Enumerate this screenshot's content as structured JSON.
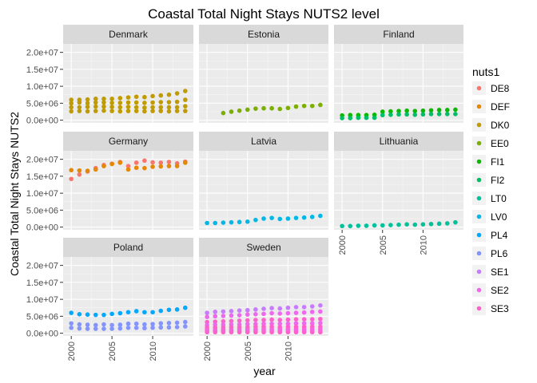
{
  "chart_data": {
    "type": "scatter",
    "title": "Coastal Total Night Stays NUTS2 level",
    "xlabel": "year",
    "ylabel": "Coastal Total Night Stays NUTS2",
    "xlim": [
      1999,
      2015
    ],
    "ylim": [
      -800000,
      22500000
    ],
    "x_ticks": [
      2000,
      2005,
      2010
    ],
    "y_ticks": [
      0,
      5000000,
      10000000,
      15000000,
      20000000
    ],
    "y_tick_labels": [
      "0.0e+00",
      "5.0e+06",
      "1.0e+07",
      "1.5e+07",
      "2.0e+07"
    ],
    "grid": true,
    "legend_title": "nuts1",
    "legend_position": "right",
    "series": [
      {
        "name": "DE8",
        "color": "#F8766D"
      },
      {
        "name": "DEF",
        "color": "#E58700"
      },
      {
        "name": "DK0",
        "color": "#C09B00"
      },
      {
        "name": "EE0",
        "color": "#7CAE00"
      },
      {
        "name": "FI1",
        "color": "#0CB702"
      },
      {
        "name": "FI2",
        "color": "#00BE67"
      },
      {
        "name": "LT0",
        "color": "#00C19A"
      },
      {
        "name": "LV0",
        "color": "#00B8E7"
      },
      {
        "name": "PL4",
        "color": "#00A9FF"
      },
      {
        "name": "PL6",
        "color": "#8494FF"
      },
      {
        "name": "SE1",
        "color": "#C77CFF"
      },
      {
        "name": "SE2",
        "color": "#ED68ED"
      },
      {
        "name": "SE3",
        "color": "#FF61CC"
      }
    ],
    "panels": [
      {
        "name": "Denmark",
        "groups": [
          {
            "series": "DK0",
            "x": [
              2000,
              2001,
              2002,
              2003,
              2004,
              2005,
              2006,
              2007,
              2008,
              2009,
              2010,
              2011,
              2012,
              2013,
              2014
            ],
            "y": [
              6000000,
              6000000,
              6100000,
              6300000,
              6300000,
              6300000,
              6500000,
              6700000,
              6900000,
              6800000,
              7100000,
              7300000,
              7500000,
              7900000,
              8600000
            ]
          },
          {
            "series": "DK0",
            "x": [
              2000,
              2001,
              2002,
              2003,
              2004,
              2005,
              2006,
              2007,
              2008,
              2009,
              2010,
              2011,
              2012,
              2013,
              2014
            ],
            "y": [
              5000000,
              5200000,
              5000000,
              5200000,
              5200000,
              5100000,
              5100000,
              5200000,
              5200000,
              5100000,
              5200000,
              5300000,
              5300000,
              5400000,
              6000000
            ]
          },
          {
            "series": "DK0",
            "x": [
              2000,
              2001,
              2002,
              2003,
              2004,
              2005,
              2006,
              2007,
              2008,
              2009,
              2010,
              2011,
              2012,
              2013,
              2014
            ],
            "y": [
              3800000,
              3800000,
              3900000,
              4000000,
              4000000,
              3900000,
              3800000,
              3900000,
              3800000,
              3700000,
              3800000,
              3800000,
              3800000,
              3800000,
              4100000
            ]
          },
          {
            "series": "DK0",
            "x": [
              2000,
              2001,
              2002,
              2003,
              2004,
              2005,
              2006,
              2007,
              2008,
              2009,
              2010,
              2011,
              2012,
              2013,
              2014
            ],
            "y": [
              2600000,
              2700000,
              2600000,
              2700000,
              2800000,
              2700000,
              2600000,
              2700000,
              2700000,
              2600000,
              2700000,
              2700000,
              2600000,
              2700000,
              2700000
            ]
          }
        ]
      },
      {
        "name": "Estonia",
        "groups": [
          {
            "series": "EE0",
            "x": [
              2002,
              2003,
              2004,
              2005,
              2006,
              2007,
              2008,
              2009,
              2010,
              2011,
              2012,
              2013,
              2014
            ],
            "y": [
              2100000,
              2500000,
              2800000,
              3100000,
              3400000,
              3500000,
              3500000,
              3300000,
              3600000,
              4000000,
              4200000,
              4200000,
              4500000
            ]
          }
        ]
      },
      {
        "name": "Finland",
        "groups": [
          {
            "series": "FI1",
            "x": [
              2000,
              2001,
              2002,
              2003,
              2004,
              2005,
              2006,
              2007,
              2008,
              2009,
              2010,
              2011,
              2012,
              2013,
              2014
            ],
            "y": [
              1400000,
              1500000,
              1500000,
              1500000,
              1600000,
              2500000,
              2600000,
              2700000,
              2800000,
              2700000,
              2800000,
              2900000,
              3000000,
              3000000,
              3100000
            ]
          },
          {
            "series": "FI2",
            "x": [
              2000,
              2001,
              2002,
              2003,
              2004,
              2005,
              2006,
              2007,
              2008,
              2009,
              2010,
              2011,
              2012,
              2013,
              2014
            ],
            "y": [
              600000,
              600000,
              700000,
              700000,
              700000,
              1500000,
              1600000,
              1700000,
              1700000,
              1600000,
              1700000,
              1800000,
              1800000,
              1800000,
              1800000
            ]
          }
        ]
      },
      {
        "name": "Germany",
        "groups": [
          {
            "series": "DE8",
            "x": [
              2000,
              2001,
              2002,
              2003,
              2004,
              2005,
              2006,
              2007,
              2008,
              2009,
              2010,
              2011,
              2012,
              2013,
              2014
            ],
            "y": [
              14200000,
              15500000,
              16400000,
              17400000,
              18300000,
              18700000,
              19200000,
              18000000,
              19000000,
              19600000,
              19100000,
              19000000,
              19200000,
              18800000,
              19300000
            ]
          },
          {
            "series": "DEF",
            "x": [
              2000,
              2001,
              2002,
              2003,
              2004,
              2005,
              2006,
              2007,
              2008,
              2009,
              2010,
              2011,
              2012,
              2013,
              2014
            ],
            "y": [
              16800000,
              16700000,
              16600000,
              17000000,
              18000000,
              18600000,
              19000000,
              17000000,
              17500000,
              17400000,
              17800000,
              17900000,
              18000000,
              18000000,
              19000000
            ]
          }
        ]
      },
      {
        "name": "Latvia",
        "groups": [
          {
            "series": "LV0",
            "x": [
              2000,
              2001,
              2002,
              2003,
              2004,
              2005,
              2006,
              2007,
              2008,
              2009,
              2010,
              2011,
              2012,
              2013,
              2014
            ],
            "y": [
              1200000,
              1200000,
              1300000,
              1400000,
              1500000,
              1600000,
              2100000,
              2500000,
              2700000,
              2400000,
              2500000,
              2700000,
              2800000,
              3000000,
              3300000
            ]
          }
        ]
      },
      {
        "name": "Lithuania",
        "groups": [
          {
            "series": "LT0",
            "x": [
              2000,
              2001,
              2002,
              2003,
              2004,
              2005,
              2006,
              2007,
              2008,
              2009,
              2010,
              2011,
              2012,
              2013,
              2014
            ],
            "y": [
              300000,
              300000,
              400000,
              400000,
              500000,
              500000,
              600000,
              700000,
              800000,
              700000,
              800000,
              900000,
              1000000,
              1100000,
              1400000
            ]
          }
        ]
      },
      {
        "name": "Poland",
        "groups": [
          {
            "series": "PL4",
            "x": [
              2000,
              2001,
              2002,
              2003,
              2004,
              2005,
              2006,
              2007,
              2008,
              2009,
              2010,
              2011,
              2012,
              2013,
              2014
            ],
            "y": [
              6000000,
              5600000,
              5500000,
              5400000,
              5400000,
              5700000,
              5900000,
              6200000,
              6500000,
              6200000,
              6200000,
              6600000,
              6900000,
              7000000,
              7500000
            ]
          },
          {
            "series": "PL6",
            "x": [
              2000,
              2001,
              2002,
              2003,
              2004,
              2005,
              2006,
              2007,
              2008,
              2009,
              2010,
              2011,
              2012,
              2013,
              2014
            ],
            "y": [
              2900000,
              2600000,
              2500000,
              2400000,
              2600000,
              2400000,
              2500000,
              2800000,
              2800000,
              2600000,
              2700000,
              2900000,
              3000000,
              3100000,
              3300000
            ]
          },
          {
            "series": "PL6",
            "x": [
              2000,
              2001,
              2002,
              2003,
              2004,
              2005,
              2006,
              2007,
              2008,
              2009,
              2010,
              2011,
              2012,
              2013,
              2014
            ],
            "y": [
              1600000,
              1400000,
              1300000,
              1300000,
              1300000,
              1300000,
              1400000,
              1600000,
              1600000,
              1500000,
              1600000,
              1700000,
              1700000,
              1800000,
              2000000
            ]
          }
        ]
      },
      {
        "name": "Sweden",
        "groups": [
          {
            "series": "SE1",
            "x": [
              2000,
              2001,
              2002,
              2003,
              2004,
              2005,
              2006,
              2007,
              2008,
              2009,
              2010,
              2011,
              2012,
              2013,
              2014
            ],
            "y": [
              6000000,
              6300000,
              6400000,
              6500000,
              6700000,
              6800000,
              7000000,
              7200000,
              7400000,
              7300000,
              7500000,
              7700000,
              7700000,
              7900000,
              8200000
            ]
          },
          {
            "series": "SE2",
            "x": [
              2000,
              2001,
              2002,
              2003,
              2004,
              2005,
              2006,
              2007,
              2008,
              2009,
              2010,
              2011,
              2012,
              2013,
              2014
            ],
            "y": [
              4800000,
              5000000,
              5100000,
              5200000,
              5300000,
              5500000,
              5600000,
              5700000,
              5900000,
              5800000,
              5900000,
              6000000,
              6100000,
              6300000,
              6400000
            ]
          },
          {
            "series": "SE3",
            "x": [
              2000,
              2001,
              2002,
              2003,
              2004,
              2005,
              2006,
              2007,
              2008,
              2009,
              2010,
              2011,
              2012,
              2013,
              2014
            ],
            "y": [
              3300000,
              3400000,
              3500000,
              3600000,
              3700000,
              3800000,
              3900000,
              3900000,
              4000000,
              3900000,
              4000000,
              4100000,
              4100000,
              4100000,
              4200000
            ]
          },
          {
            "series": "SE2",
            "x": [
              2000,
              2001,
              2002,
              2003,
              2004,
              2005,
              2006,
              2007,
              2008,
              2009,
              2010,
              2011,
              2012,
              2013,
              2014
            ],
            "y": [
              2400000,
              2500000,
              2500000,
              2600000,
              2600000,
              2700000,
              2700000,
              2800000,
              2800000,
              2800000,
              2800000,
              2900000,
              2900000,
              2900000,
              3000000
            ]
          },
          {
            "series": "SE3",
            "x": [
              2000,
              2001,
              2002,
              2003,
              2004,
              2005,
              2006,
              2007,
              2008,
              2009,
              2010,
              2011,
              2012,
              2013,
              2014
            ],
            "y": [
              1700000,
              1700000,
              1700000,
              1800000,
              1800000,
              1800000,
              1900000,
              1900000,
              1900000,
              1800000,
              1900000,
              1900000,
              1900000,
              1900000,
              1900000
            ]
          },
          {
            "series": "SE3",
            "x": [
              2000,
              2001,
              2002,
              2003,
              2004,
              2005,
              2006,
              2007,
              2008,
              2009,
              2010,
              2011,
              2012,
              2013,
              2014
            ],
            "y": [
              1100000,
              1100000,
              1100000,
              1100000,
              1200000,
              1200000,
              1200000,
              1200000,
              1200000,
              1200000,
              1200000,
              1200000,
              1200000,
              1200000,
              1200000
            ]
          },
          {
            "series": "SE2",
            "x": [
              2000,
              2001,
              2002,
              2003,
              2004,
              2005,
              2006,
              2007,
              2008,
              2009,
              2010,
              2011,
              2012,
              2013,
              2014
            ],
            "y": [
              700000,
              700000,
              700000,
              700000,
              700000,
              800000,
              800000,
              800000,
              800000,
              800000,
              800000,
              800000,
              800000,
              800000,
              800000
            ]
          },
          {
            "series": "SE3",
            "x": [
              2000,
              2001,
              2002,
              2003,
              2004,
              2005,
              2006,
              2007,
              2008,
              2009,
              2010,
              2011,
              2012,
              2013,
              2014
            ],
            "y": [
              300000,
              300000,
              300000,
              300000,
              300000,
              300000,
              300000,
              300000,
              300000,
              300000,
              300000,
              300000,
              300000,
              300000,
              300000
            ]
          }
        ]
      }
    ]
  }
}
